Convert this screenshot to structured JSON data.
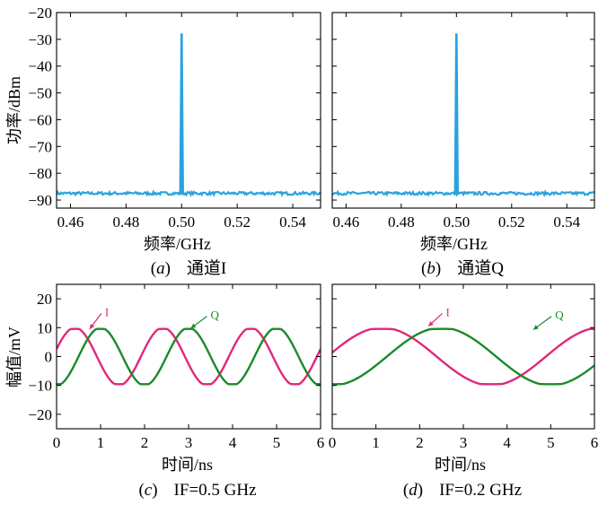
{
  "chart_data": [
    {
      "id": "a",
      "type": "line",
      "caption_letter": "a",
      "caption_text": "通道I",
      "xlabel": "频率/GHz",
      "ylabel": "功率/dBm",
      "xlim": [
        0.455,
        0.55
      ],
      "ylim": [
        -93,
        -20
      ],
      "xticks": [
        0.46,
        0.48,
        0.5,
        0.52,
        0.54
      ],
      "xtick_labels": [
        "0.46",
        "0.48",
        "0.50",
        "0.52",
        "0.54"
      ],
      "yticks": [
        -20,
        -30,
        -40,
        -50,
        -60,
        -70,
        -80,
        -90
      ],
      "ytick_labels": [
        "−20",
        "−30",
        "−40",
        "−50",
        "−60",
        "−70",
        "−80",
        "−90"
      ],
      "grid": false,
      "series": [
        {
          "color": "#29a3e0",
          "noise_floor": -87.5,
          "peak_x": 0.5,
          "peak_y": -28
        }
      ]
    },
    {
      "id": "b",
      "type": "line",
      "caption_letter": "b",
      "caption_text": "通道Q",
      "xlabel": "频率/GHz",
      "ylabel": "",
      "xlim": [
        0.455,
        0.55
      ],
      "ylim": [
        -93,
        -20
      ],
      "xticks": [
        0.46,
        0.48,
        0.5,
        0.52,
        0.54
      ],
      "xtick_labels": [
        "0.46",
        "0.48",
        "0.50",
        "0.52",
        "0.54"
      ],
      "yticks": [
        -20,
        -30,
        -40,
        -50,
        -60,
        -70,
        -80,
        -90
      ],
      "ytick_labels": [],
      "grid": false,
      "series": [
        {
          "color": "#29a3e0",
          "noise_floor": -87.5,
          "peak_x": 0.5,
          "peak_y": -28
        }
      ]
    },
    {
      "id": "c",
      "type": "line",
      "caption_letter": "c",
      "caption_text": "IF=0.5 GHz",
      "xlabel": "时间/ns",
      "ylabel": "幅值/mV",
      "xlim": [
        0,
        6
      ],
      "ylim": [
        -25,
        25
      ],
      "xticks": [
        0,
        1,
        2,
        3,
        4,
        5,
        6
      ],
      "xtick_labels": [
        "0",
        "1",
        "2",
        "3",
        "4",
        "5",
        "6"
      ],
      "yticks": [
        20,
        10,
        0,
        -10,
        -20
      ],
      "ytick_labels": [
        "20",
        "10",
        "0",
        "−10",
        "−20"
      ],
      "grid": false,
      "series": [
        {
          "name": "I",
          "color": "#e0287a",
          "amplitude": 10,
          "frequency_ghz": 0.5,
          "phase_deg": 15
        },
        {
          "name": "Q",
          "color": "#1c8a2a",
          "amplitude": 10,
          "frequency_ghz": 0.5,
          "phase_deg": -90
        }
      ],
      "annotations": [
        {
          "text": "I",
          "x": 1.1,
          "y": 14,
          "arrow_to_x": 0.75,
          "arrow_to_y": 9.5
        },
        {
          "text": "Q",
          "x": 3.5,
          "y": 13,
          "arrow_to_x": 3.05,
          "arrow_to_y": 9.8
        }
      ]
    },
    {
      "id": "d",
      "type": "line",
      "caption_letter": "d",
      "caption_text": "IF=0.2 GHz",
      "xlabel": "时间/ns",
      "ylabel": "",
      "xlim": [
        0,
        6
      ],
      "ylim": [
        -25,
        25
      ],
      "xticks": [
        0,
        1,
        2,
        3,
        4,
        5,
        6
      ],
      "xtick_labels": [
        "0",
        "1",
        "2",
        "3",
        "4",
        "5",
        "6"
      ],
      "yticks": [
        20,
        10,
        0,
        -10,
        -20
      ],
      "ytick_labels": [],
      "grid": false,
      "series": [
        {
          "name": "I",
          "color": "#e0287a",
          "amplitude": 10,
          "frequency_ghz": 0.2,
          "phase_deg": 8
        },
        {
          "name": "Q",
          "color": "#1c8a2a",
          "amplitude": 10,
          "frequency_ghz": 0.2,
          "phase_deg": -90
        }
      ],
      "annotations": [
        {
          "text": "I",
          "x": 2.6,
          "y": 14,
          "arrow_to_x": 2.2,
          "arrow_to_y": 10.5
        },
        {
          "text": "Q",
          "x": 5.1,
          "y": 13,
          "arrow_to_x": 4.6,
          "arrow_to_y": 9.3
        }
      ]
    }
  ]
}
